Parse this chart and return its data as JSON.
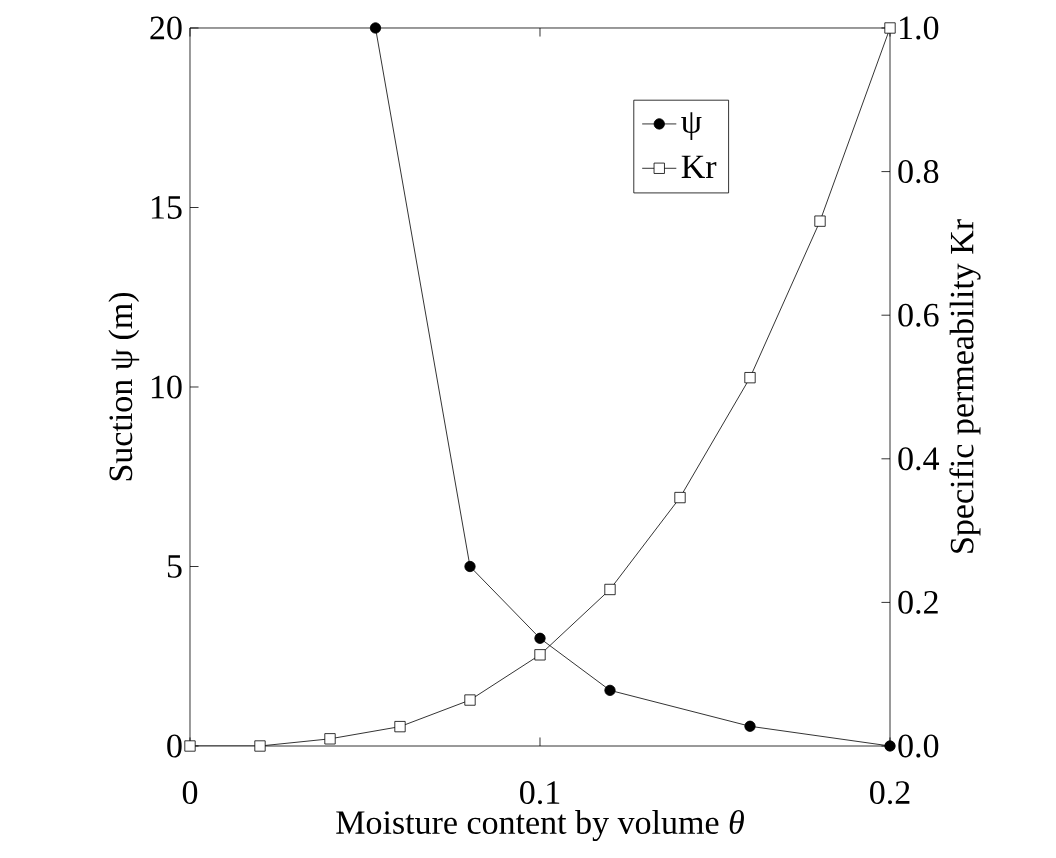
{
  "chart_data": {
    "type": "line",
    "xlabel": "Moisture content by volume *θ*",
    "ylabel": "Suction ψ (m)",
    "y2label": "Specific permeability Kr",
    "xlim": [
      0,
      0.2
    ],
    "xticks": [
      0,
      0.1,
      0.2
    ],
    "ylim": [
      0,
      20
    ],
    "yticks": [
      0,
      5,
      10,
      15,
      20
    ],
    "y2lim": [
      0,
      1
    ],
    "y2ticks": [
      {
        "value": 0,
        "label": "0.0"
      },
      {
        "value": 0.2,
        "label": "0.2"
      },
      {
        "value": 0.4,
        "label": "0.4"
      },
      {
        "value": 0.6,
        "label": "0.6"
      },
      {
        "value": 0.8,
        "label": "0.8"
      },
      {
        "value": 1,
        "label": "1.0"
      }
    ],
    "legend": "top right",
    "grid": false,
    "line_style": "solid",
    "series": [
      {
        "name": "ψ",
        "color": "#000000",
        "marker": "circle",
        "x": [
          0.053,
          0.08,
          0.1,
          0.12,
          0.16,
          0.2
        ],
        "values": [
          20,
          5,
          3,
          1.55,
          0.55,
          0
        ]
      },
      {
        "name": "Kr",
        "color": "#000000",
        "marker": "square",
        "axis": "y2",
        "x": [
          0,
          0.02,
          0.04,
          0.06,
          0.08,
          0.1,
          0.12,
          0.14,
          0.16,
          0.18,
          0.2
        ],
        "values": [
          0,
          0,
          0.01,
          0.027,
          0.064,
          0.127,
          0.218,
          0.346,
          0.513,
          0.731,
          1.0
        ]
      }
    ]
  }
}
